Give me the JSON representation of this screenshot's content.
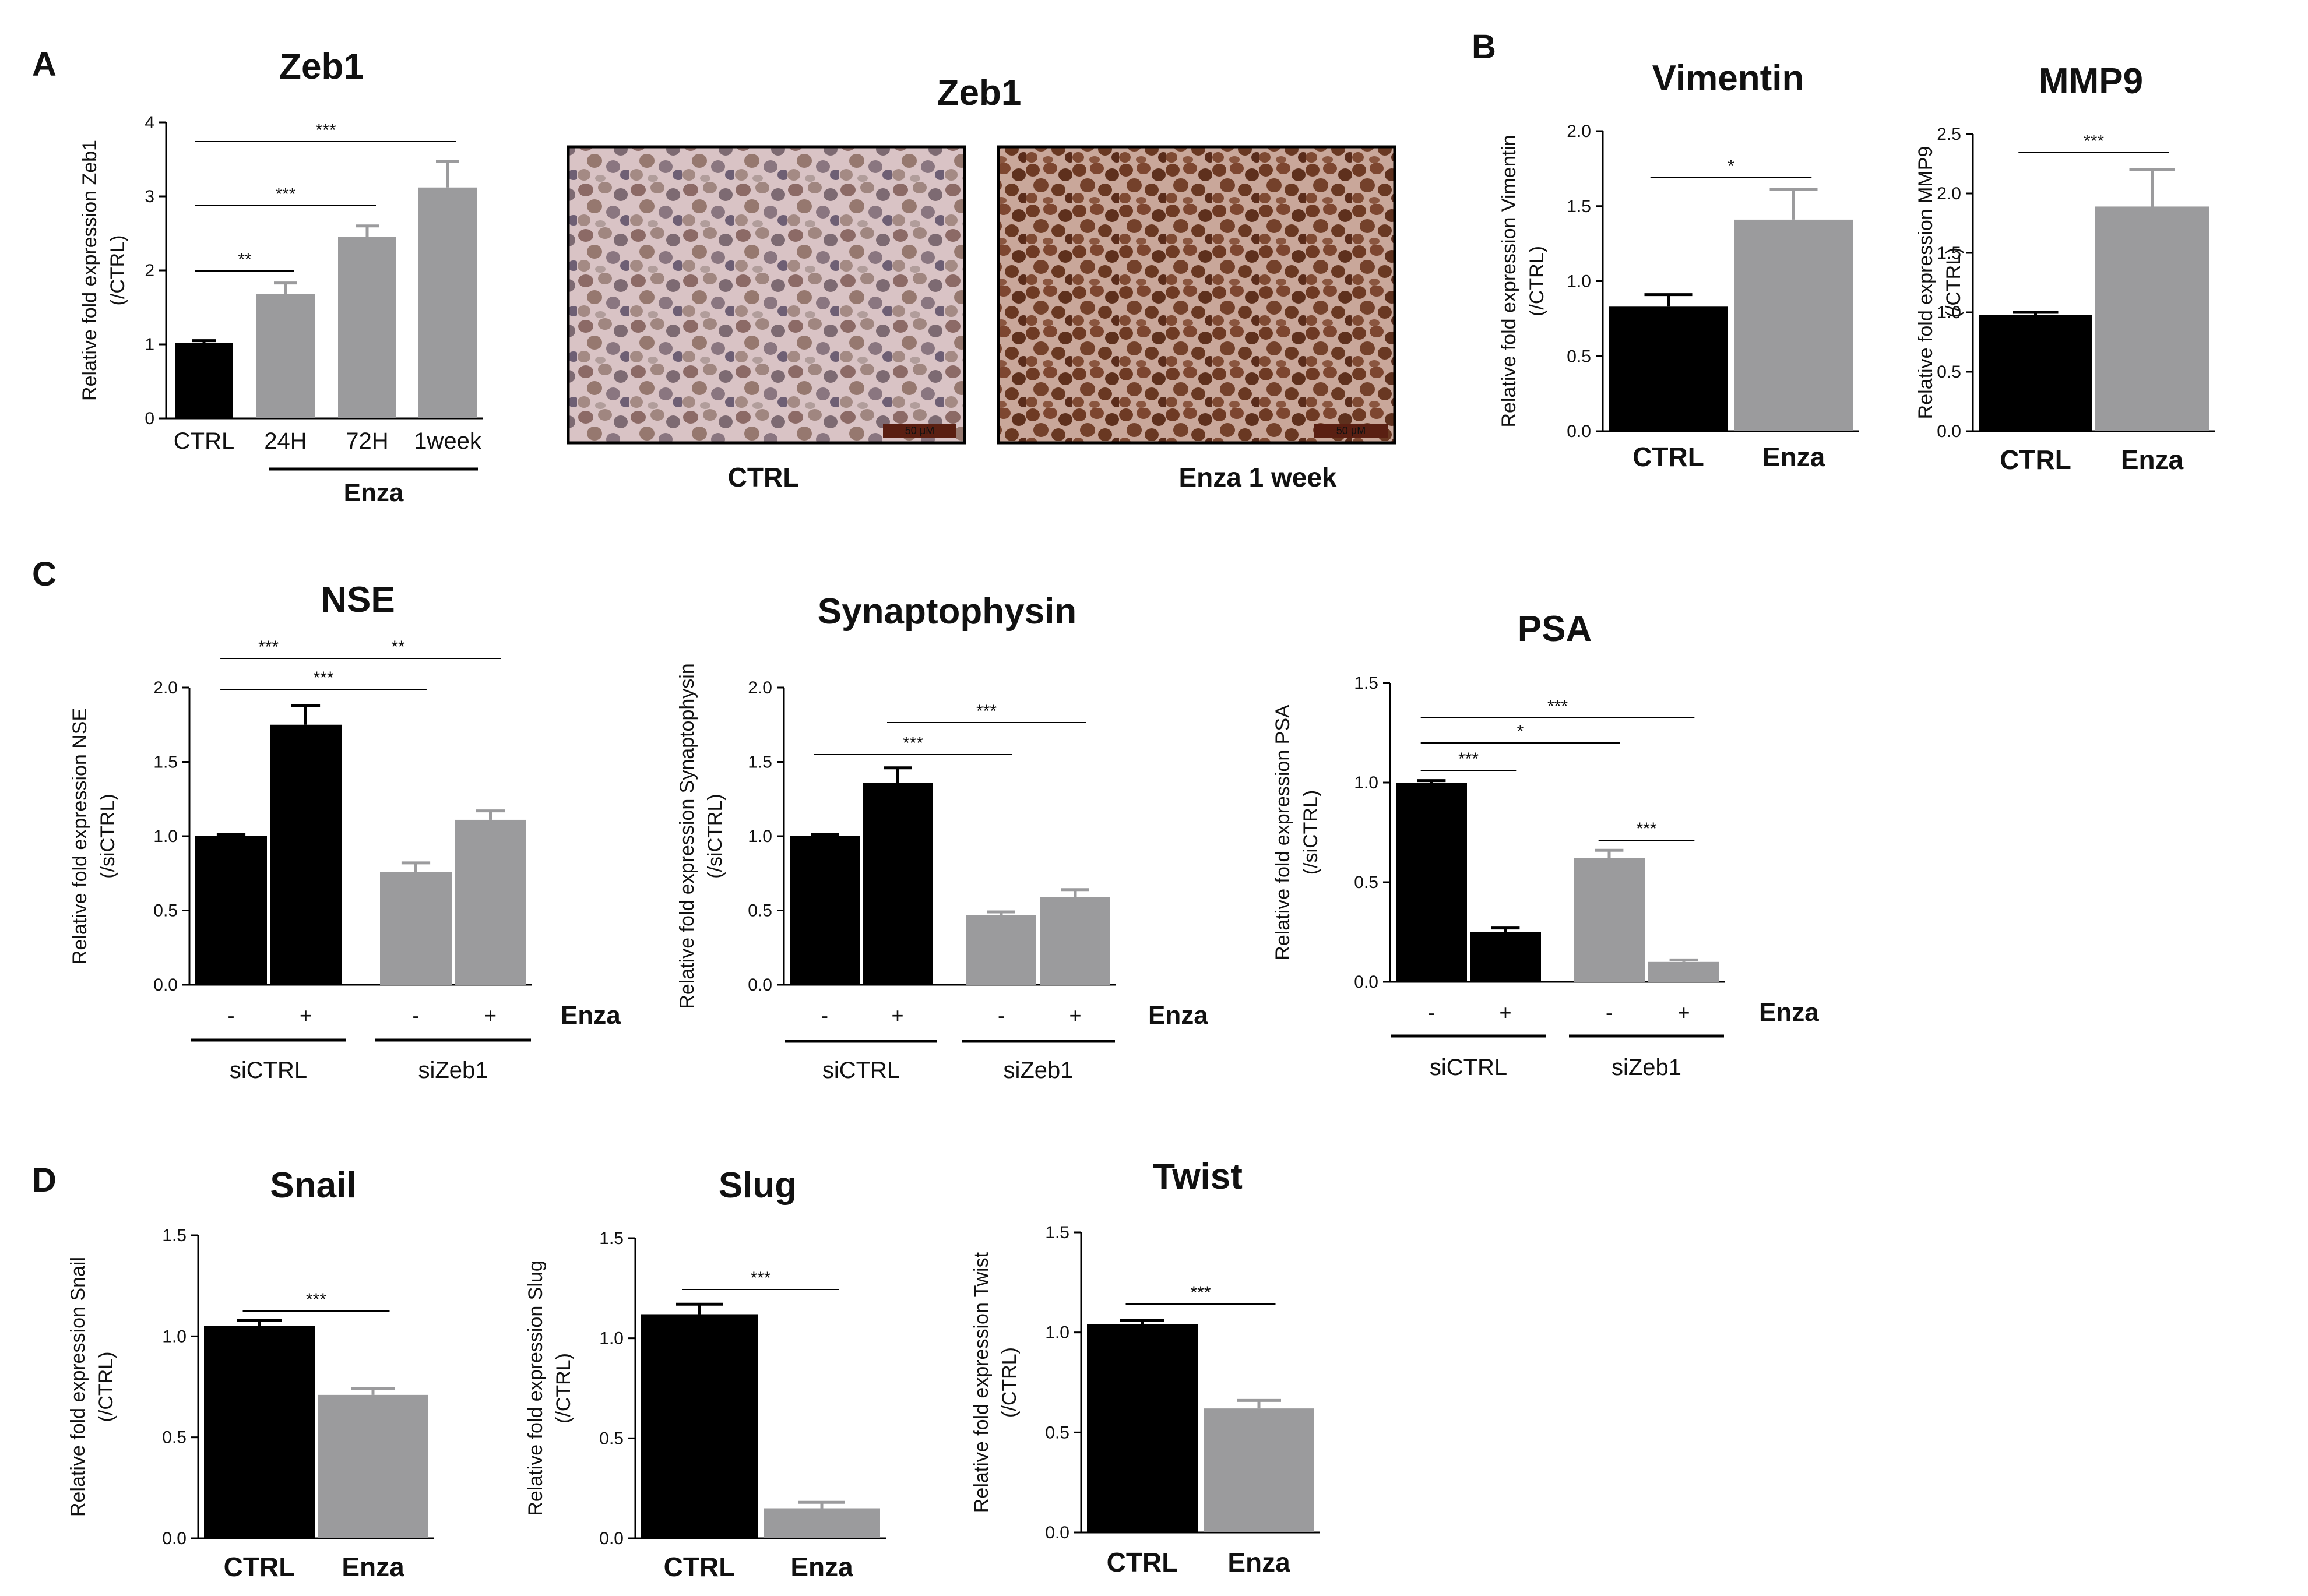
{
  "panel_labels": [
    "A",
    "B",
    "C",
    "D"
  ],
  "colors": {
    "ctrl": "#000000",
    "treated": "#9b9b9d",
    "frame": "#000000"
  },
  "ihc": {
    "title": "Zeb1",
    "images": [
      {
        "caption": "CTRL",
        "scale": "50 μM"
      },
      {
        "caption": "Enza 1 week",
        "scale": "50 μM"
      }
    ]
  },
  "chart_data": [
    {
      "type": "bar",
      "title": "Zeb1",
      "ylabel": "Relative fold expression Zeb1",
      "ylabel2": "(/CTRL)",
      "ylim": [
        0,
        4
      ],
      "yticks": [
        "0",
        "1",
        "2",
        "3",
        "4"
      ],
      "categories": [
        "CTRL",
        "24H",
        "72H",
        "1week"
      ],
      "values": [
        1.02,
        1.68,
        2.45,
        3.12
      ],
      "errors": [
        0.03,
        0.15,
        0.15,
        0.35
      ],
      "colors": [
        "ctrl",
        "treated",
        "treated",
        "treated"
      ],
      "group_label": "Enza",
      "significance": [
        {
          "from": 0,
          "to": 1,
          "label": "**"
        },
        {
          "from": 0,
          "to": 2,
          "label": "***"
        },
        {
          "from": 0,
          "to": 3,
          "label": "***"
        }
      ]
    },
    {
      "type": "bar",
      "title": "Vimentin",
      "ylabel": "Relative fold expression Vimentin",
      "ylabel2": "(/CTRL)",
      "ylim": [
        0,
        2
      ],
      "yticks": [
        "0.0",
        "0.5",
        "1.0",
        "1.5",
        "2.0"
      ],
      "categories": [
        "CTRL",
        "Enza"
      ],
      "values": [
        0.83,
        1.41
      ],
      "errors": [
        0.08,
        0.2
      ],
      "colors": [
        "ctrl",
        "treated"
      ],
      "significance": [
        {
          "from": 0,
          "to": 1,
          "label": "*"
        }
      ]
    },
    {
      "type": "bar",
      "title": "MMP9",
      "ylabel": "Relative fold expression MMP9",
      "ylabel2": "(/CTRL)",
      "ylim": [
        0,
        2.5
      ],
      "yticks": [
        "0.0",
        "0.5",
        "1.0",
        "1.5",
        "2.0",
        "2.5"
      ],
      "categories": [
        "CTRL",
        "Enza"
      ],
      "values": [
        0.98,
        1.89
      ],
      "errors": [
        0.02,
        0.31
      ],
      "colors": [
        "ctrl",
        "treated"
      ],
      "significance": [
        {
          "from": 0,
          "to": 1,
          "label": "***"
        }
      ]
    },
    {
      "type": "bar",
      "title": "NSE",
      "ylabel": "Relative fold expression NSE",
      "ylabel2": "(/siCTRL)",
      "ylim": [
        0,
        2
      ],
      "yticks": [
        "0.0",
        "0.5",
        "1.0",
        "1.5",
        "2.0"
      ],
      "categories": [
        "-",
        "+",
        "-",
        "+"
      ],
      "values": [
        1.0,
        1.75,
        0.76,
        1.11
      ],
      "errors": [
        0.01,
        0.13,
        0.06,
        0.06
      ],
      "colors": [
        "ctrl",
        "ctrl",
        "treated",
        "treated"
      ],
      "treatment_label": "Enza",
      "groups": [
        {
          "label": "siCTRL",
          "from": 0,
          "to": 1
        },
        {
          "label": "siZeb1",
          "from": 2,
          "to": 3
        }
      ],
      "significance": [
        {
          "from": 0,
          "to": 1,
          "label": "***"
        },
        {
          "from": 1,
          "to": 3,
          "label": "**"
        },
        {
          "from": 0,
          "to": 2,
          "label": "***"
        }
      ]
    },
    {
      "type": "bar",
      "title": "Synaptophysin",
      "ylabel": "Relative fold expression Synaptophysin",
      "ylabel2": "(/siCTRL)",
      "ylim": [
        0,
        2
      ],
      "yticks": [
        "0.0",
        "0.5",
        "1.0",
        "1.5",
        "2.0"
      ],
      "categories": [
        "-",
        "+",
        "-",
        "+"
      ],
      "values": [
        1.0,
        1.36,
        0.47,
        0.59
      ],
      "errors": [
        0.01,
        0.1,
        0.02,
        0.05
      ],
      "colors": [
        "ctrl",
        "ctrl",
        "treated",
        "treated"
      ],
      "treatment_label": "Enza",
      "groups": [
        {
          "label": "siCTRL",
          "from": 0,
          "to": 1
        },
        {
          "label": "siZeb1",
          "from": 2,
          "to": 3
        }
      ],
      "significance": [
        {
          "from": 0,
          "to": 2,
          "label": "***"
        },
        {
          "from": 1,
          "to": 3,
          "label": "***"
        }
      ]
    },
    {
      "type": "bar",
      "title": "PSA",
      "ylabel": "Relative fold expression PSA",
      "ylabel2": "(/siCTRL)",
      "ylim": [
        0,
        1.5
      ],
      "yticks": [
        "0.0",
        "0.5",
        "1.0",
        "1.5"
      ],
      "categories": [
        "-",
        "+",
        "-",
        "+"
      ],
      "values": [
        1.0,
        0.25,
        0.62,
        0.1
      ],
      "errors": [
        0.01,
        0.02,
        0.04,
        0.01
      ],
      "colors": [
        "ctrl",
        "ctrl",
        "treated",
        "treated"
      ],
      "treatment_label": "Enza",
      "groups": [
        {
          "label": "siCTRL",
          "from": 0,
          "to": 1
        },
        {
          "label": "siZeb1",
          "from": 2,
          "to": 3
        }
      ],
      "significance": [
        {
          "from": 0,
          "to": 1,
          "label": "***"
        },
        {
          "from": 0,
          "to": 2,
          "label": "*"
        },
        {
          "from": 0,
          "to": 3,
          "label": "***"
        },
        {
          "from": 2,
          "to": 3,
          "label": "***"
        }
      ]
    },
    {
      "type": "bar",
      "title": "Snail",
      "ylabel": "Relative fold expression Snail",
      "ylabel2": "(/CTRL)",
      "ylim": [
        0,
        1.5
      ],
      "yticks": [
        "0.0",
        "0.5",
        "1.0",
        "1.5"
      ],
      "categories": [
        "CTRL",
        "Enza"
      ],
      "values": [
        1.05,
        0.71
      ],
      "errors": [
        0.03,
        0.03
      ],
      "colors": [
        "ctrl",
        "treated"
      ],
      "significance": [
        {
          "from": 0,
          "to": 1,
          "label": "***"
        }
      ]
    },
    {
      "type": "bar",
      "title": "Slug",
      "ylabel": "Relative fold expression Slug",
      "ylabel2": "(/CTRL)",
      "ylim": [
        0,
        1.5
      ],
      "yticks": [
        "0.0",
        "0.5",
        "1.0",
        "1.5"
      ],
      "categories": [
        "CTRL",
        "Enza"
      ],
      "values": [
        1.12,
        0.15
      ],
      "errors": [
        0.05,
        0.03
      ],
      "colors": [
        "ctrl",
        "treated"
      ],
      "significance": [
        {
          "from": 0,
          "to": 1,
          "label": "***"
        }
      ]
    },
    {
      "type": "bar",
      "title": "Twist",
      "ylabel": "Relative fold expression Twist",
      "ylabel2": "(/CTRL)",
      "ylim": [
        0,
        1.5
      ],
      "yticks": [
        "0.0",
        "0.5",
        "1.0",
        "1.5"
      ],
      "categories": [
        "CTRL",
        "Enza"
      ],
      "values": [
        1.04,
        0.62
      ],
      "errors": [
        0.02,
        0.04
      ],
      "colors": [
        "ctrl",
        "treated"
      ],
      "significance": [
        {
          "from": 0,
          "to": 1,
          "label": "***"
        }
      ]
    }
  ]
}
